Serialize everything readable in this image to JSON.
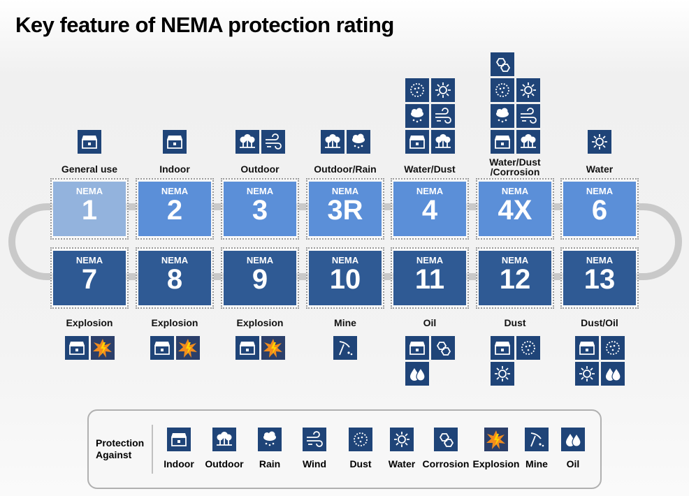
{
  "title": "Key feature of NEMA protection rating",
  "badge": "NEMA",
  "ratings_top": [
    {
      "number": "1",
      "label": "General use"
    },
    {
      "number": "2",
      "label": "Indoor"
    },
    {
      "number": "3",
      "label": "Outdoor"
    },
    {
      "number": "3R",
      "label": "Outdoor/Rain"
    },
    {
      "number": "4",
      "label": "Water/Dust"
    },
    {
      "number": "4X",
      "label": "Water/Dust\n/Corrosion"
    },
    {
      "number": "6",
      "label": "Water"
    }
  ],
  "ratings_bottom": [
    {
      "number": "7",
      "label": "Explosion"
    },
    {
      "number": "8",
      "label": "Explosion"
    },
    {
      "number": "9",
      "label": "Explosion"
    },
    {
      "number": "10",
      "label": "Mine"
    },
    {
      "number": "11",
      "label": "Oil"
    },
    {
      "number": "12",
      "label": "Dust"
    },
    {
      "number": "13",
      "label": "Dust/Oil"
    }
  ],
  "legend": {
    "title": "Protection Against",
    "items": [
      "Indoor",
      "Outdoor",
      "Rain",
      "Wind",
      "Dust",
      "Water",
      "Corrosion",
      "Explosion",
      "Mine",
      "Oil"
    ]
  }
}
